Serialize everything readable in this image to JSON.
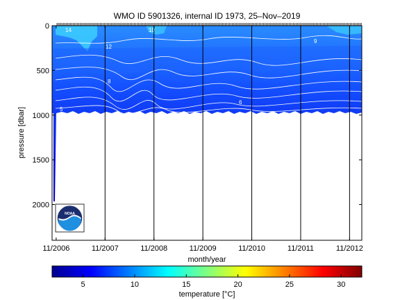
{
  "chart_data": {
    "type": "heatmap",
    "title": "WMO ID 5901326, internal ID 1973, 25–Nov–2019",
    "xlabel": "month/year",
    "ylabel": "pressure [dbar]",
    "x_ticks": [
      "11/2006",
      "11/2007",
      "11/2008",
      "11/2009",
      "11/2010",
      "11/2011",
      "11/2012"
    ],
    "x_range": [
      "2006-10",
      "2013-02"
    ],
    "y_ticks": [
      0,
      500,
      1000,
      1500,
      2000
    ],
    "y_range": [
      0,
      2400
    ],
    "y_reversed": true,
    "profiles_max_pressure": 1000,
    "early_profile_max_pressure": 2000,
    "contour_lines": true,
    "contour_labels": [
      5,
      6,
      8,
      9,
      10,
      12,
      14
    ],
    "colorbar": {
      "label": "temperature [°C]",
      "range": [
        2,
        32
      ],
      "ticks": [
        5,
        10,
        15,
        20,
        25,
        30
      ],
      "colormap": "jet",
      "orientation": "horizontal",
      "position": "bottom"
    },
    "colors": {
      "deep": "#0000c8",
      "mid": "#1e64ff",
      "surface": "#3cc8ff",
      "contour": "#ffffff"
    },
    "logo": "noaa-logo"
  }
}
